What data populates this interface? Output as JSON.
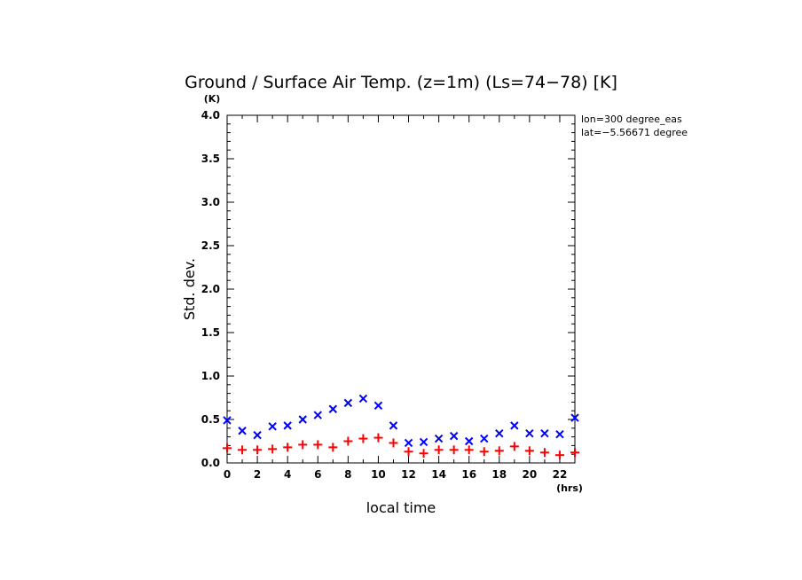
{
  "chart_data": {
    "type": "scatter",
    "title": "Ground / Surface Air Temp. (z=1m) (Ls=74−78) [K]",
    "xlabel": "local time",
    "ylabel": "Std. dev.",
    "x_unit": "(hrs)",
    "y_unit": "(K)",
    "xlim": [
      0,
      23
    ],
    "ylim": [
      0,
      4.0
    ],
    "x_ticks": [
      "0",
      "2",
      "4",
      "6",
      "8",
      "10",
      "12",
      "14",
      "16",
      "18",
      "20",
      "22"
    ],
    "y_ticks": [
      "0.0",
      "0.5",
      "1.0",
      "1.5",
      "2.0",
      "2.5",
      "3.0",
      "3.5",
      "4.0"
    ],
    "annotations": [
      "lon=300 degree_eas",
      "lat=−5.56671 degree"
    ],
    "x": [
      0,
      1,
      2,
      3,
      4,
      5,
      6,
      7,
      8,
      9,
      10,
      11,
      12,
      13,
      14,
      15,
      16,
      17,
      18,
      19,
      20,
      21,
      22,
      23
    ],
    "series": [
      {
        "marker": "x",
        "color": "#0000ff",
        "values": [
          0.49,
          0.37,
          0.32,
          0.42,
          0.43,
          0.5,
          0.55,
          0.62,
          0.69,
          0.74,
          0.66,
          0.43,
          0.23,
          0.24,
          0.28,
          0.31,
          0.25,
          0.28,
          0.34,
          0.43,
          0.34,
          0.34,
          0.33,
          0.52
        ]
      },
      {
        "marker": "+",
        "color": "#ff0000",
        "values": [
          0.17,
          0.15,
          0.15,
          0.16,
          0.18,
          0.21,
          0.21,
          0.18,
          0.25,
          0.28,
          0.29,
          0.23,
          0.13,
          0.11,
          0.15,
          0.15,
          0.15,
          0.13,
          0.14,
          0.19,
          0.14,
          0.12,
          0.09,
          0.12
        ]
      }
    ]
  }
}
